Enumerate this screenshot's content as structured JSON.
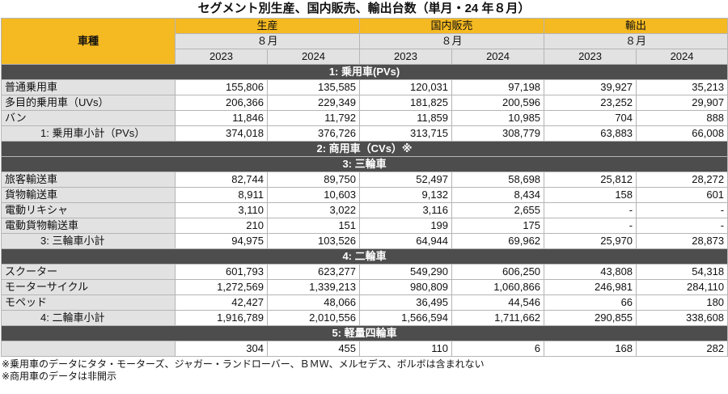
{
  "title": "セグメント別生産、国内販売、輸出台数（単月・24 年８月）",
  "header": {
    "car_type": "車種",
    "groups": [
      {
        "label": "生産",
        "month": "８月"
      },
      {
        "label": "国内販売",
        "month": "８月"
      },
      {
        "label": "輸出",
        "month": "８月"
      }
    ],
    "years": [
      "2023",
      "2024",
      "2023",
      "2024",
      "2023",
      "2024"
    ]
  },
  "sections": [
    {
      "title": "1: 乗用車(PVs)",
      "rows": [
        {
          "label": "普通乗用車",
          "values": [
            "155,806",
            "135,585",
            "120,031",
            "97,198",
            "39,927",
            "35,213"
          ]
        },
        {
          "label": "多目的乗用車（UVs）",
          "values": [
            "206,366",
            "229,349",
            "181,825",
            "200,596",
            "23,252",
            "29,907"
          ]
        },
        {
          "label": "バン",
          "values": [
            "11,846",
            "11,792",
            "11,859",
            "10,985",
            "704",
            "888"
          ]
        },
        {
          "label": "1: 乗用車小計（PVs）",
          "subtotal": true,
          "values": [
            "374,018",
            "376,726",
            "313,715",
            "308,779",
            "63,883",
            "66,008"
          ]
        }
      ]
    },
    {
      "title": "2: 商用車（CVs）※",
      "rows": []
    },
    {
      "title": "3: 三輪車",
      "rows": [
        {
          "label": "旅客輸送車",
          "values": [
            "82,744",
            "89,750",
            "52,497",
            "58,698",
            "25,812",
            "28,272"
          ]
        },
        {
          "label": "貨物輸送車",
          "values": [
            "8,911",
            "10,603",
            "9,132",
            "8,434",
            "158",
            "601"
          ]
        },
        {
          "label": "電動リキシャ",
          "values": [
            "3,110",
            "3,022",
            "3,116",
            "2,655",
            "-",
            "-"
          ]
        },
        {
          "label": "電動貨物輸送車",
          "values": [
            "210",
            "151",
            "199",
            "175",
            "-",
            "-"
          ]
        },
        {
          "label": "3: 三輪車小計",
          "subtotal": true,
          "values": [
            "94,975",
            "103,526",
            "64,944",
            "69,962",
            "25,970",
            "28,873"
          ]
        }
      ]
    },
    {
      "title": "4: 二輪車",
      "rows": [
        {
          "label": "スクーター",
          "values": [
            "601,793",
            "623,277",
            "549,290",
            "606,250",
            "43,808",
            "54,318"
          ]
        },
        {
          "label": "モーターサイクル",
          "values": [
            "1,272,569",
            "1,339,213",
            "980,809",
            "1,060,866",
            "246,981",
            "284,110"
          ]
        },
        {
          "label": "モペッド",
          "values": [
            "42,427",
            "48,066",
            "36,495",
            "44,546",
            "66",
            "180"
          ]
        },
        {
          "label": "4: 二輪車小計",
          "subtotal": true,
          "values": [
            "1,916,789",
            "2,010,556",
            "1,566,594",
            "1,711,662",
            "290,855",
            "338,608"
          ]
        }
      ]
    },
    {
      "title": "5: 軽量四輪車",
      "rows": [
        {
          "label": "",
          "values": [
            "304",
            "455",
            "110",
            "6",
            "168",
            "282"
          ]
        }
      ]
    }
  ],
  "notes": [
    "※乗用車のデータにタタ・モーターズ、ジャガー・ランドローバー、ＢＭＷ、メルセデス、ボルボは含まれない",
    "※商用車のデータは非開示"
  ]
}
